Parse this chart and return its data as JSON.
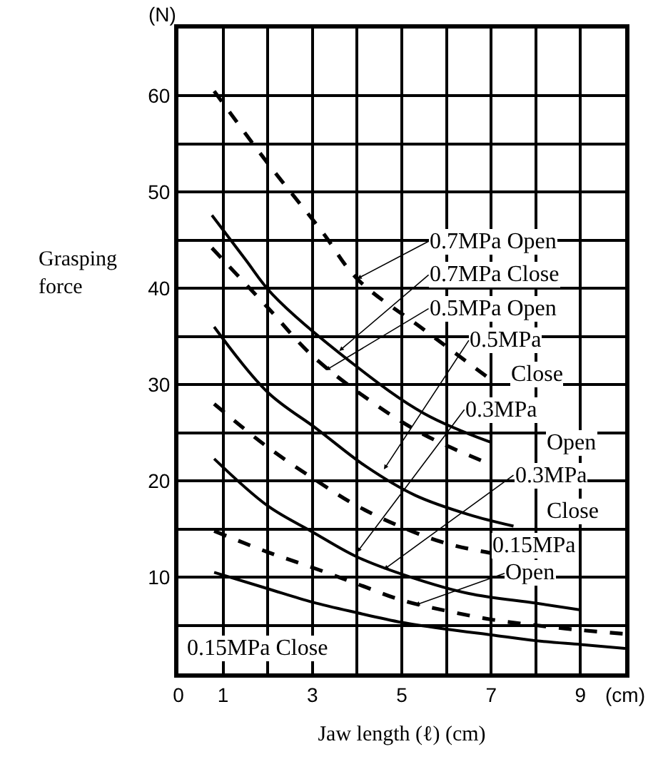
{
  "chart_data": {
    "type": "line",
    "xlabel": "Jaw length (ℓ) (cm)",
    "ylabel": "Grasping force",
    "xlim": [
      0,
      10
    ],
    "ylim": [
      0,
      67
    ],
    "xticks": [
      0,
      1,
      {
        "value": 2,
        "label": null
      },
      3,
      {
        "value": 4,
        "label": null
      },
      5,
      {
        "value": 6,
        "label": null
      },
      7,
      {
        "value": 8,
        "label": null
      },
      9,
      {
        "value": 10,
        "label": "(cm)"
      }
    ],
    "yticks": [
      {
        "value": 5,
        "label": null
      },
      10,
      {
        "value": 15,
        "label": null
      },
      20,
      {
        "value": 25,
        "label": null
      },
      30,
      {
        "value": 35,
        "label": null
      },
      40,
      {
        "value": 45,
        "label": null
      },
      50,
      {
        "value": 55,
        "label": null
      },
      60
    ],
    "grid": true,
    "legend": false,
    "marker": "none",
    "series": [
      {
        "color": "#000000",
        "line_style": "dashed",
        "x": [
          0.8,
          2,
          3.2,
          4,
          5.5,
          7
        ],
        "values": [
          60.5,
          53,
          46,
          41,
          35.7,
          30.5
        ]
      },
      {
        "color": "#000000",
        "line_style": "solid",
        "x": [
          0.75,
          1.5,
          2.1,
          3.9,
          5.5,
          7
        ],
        "values": [
          47.6,
          43,
          39.4,
          32.2,
          27,
          24
        ]
      },
      {
        "color": "#000000",
        "line_style": "dashed",
        "x": [
          0.75,
          2,
          3,
          4.3,
          5.5,
          7
        ],
        "values": [
          44.2,
          38,
          33,
          28.3,
          24.8,
          21.7
        ]
      },
      {
        "color": "#000000",
        "line_style": "solid",
        "x": [
          0.8,
          2,
          3.1,
          4.2,
          5.3,
          6.5,
          7.5
        ],
        "values": [
          36,
          29.2,
          25.4,
          21.5,
          18.5,
          16.5,
          15.3
        ]
      },
      {
        "color": "#000000",
        "line_style": "dashed",
        "x": [
          0.8,
          2,
          3.1,
          4,
          5,
          6,
          7
        ],
        "values": [
          28,
          23.5,
          20,
          17.4,
          15.2,
          13.5,
          12.5
        ]
      },
      {
        "color": "#000000",
        "line_style": "solid",
        "x": [
          0.8,
          2,
          3,
          4,
          5.2,
          6.5,
          8,
          9
        ],
        "values": [
          22.3,
          17.4,
          14.7,
          12.1,
          10,
          8.3,
          7.3,
          6.6
        ]
      },
      {
        "color": "#000000",
        "line_style": "dashed",
        "x": [
          0.8,
          2,
          3,
          4,
          5,
          6,
          7,
          8,
          9,
          10
        ],
        "values": [
          14.8,
          12.6,
          11,
          9.3,
          7.6,
          6.5,
          5.6,
          5,
          4.5,
          4.1
        ]
      },
      {
        "color": "#000000",
        "line_style": "solid",
        "x": [
          0.8,
          2,
          3,
          4,
          5,
          6,
          7,
          8,
          9,
          10
        ],
        "values": [
          10.5,
          8.8,
          7.4,
          6.3,
          5.3,
          4.6,
          4,
          3.4,
          3,
          2.6
        ]
      }
    ],
    "annotations": [
      "(N)",
      {
        "text": "0.7MPa Open",
        "x": 4.0,
        "y": 41
      },
      {
        "text": "0.7MPa Close",
        "x": 3.6,
        "y": 33.5
      },
      {
        "text": "0.5MPa Open",
        "x": 3.3,
        "y": 31.5
      },
      {
        "text": "0.5MPa",
        "x": 4.6,
        "y": 21.2
      },
      "Close",
      {
        "text": "0.3MPa",
        "x": 4.0,
        "y": 12.6
      },
      "Open",
      {
        "text": "0.3MPa",
        "x": 4.6,
        "y": 10.8
      },
      "Close",
      "0.15MPa",
      {
        "text": "Open",
        "x": 5.3,
        "y": 7.1
      },
      "0.15MPa Close"
    ]
  }
}
